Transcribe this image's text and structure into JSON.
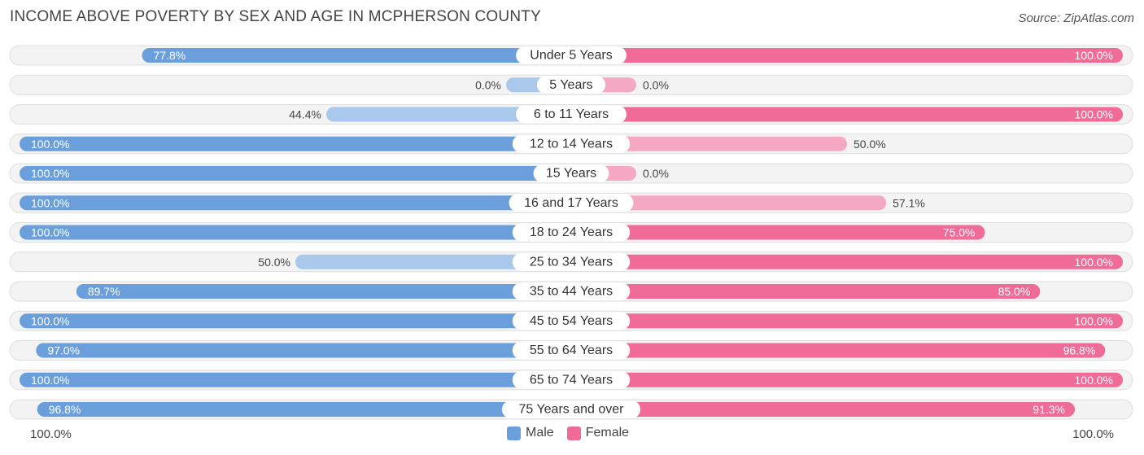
{
  "title": "INCOME ABOVE POVERTY BY SEX AND AGE IN MCPHERSON COUNTY",
  "source": "Source: ZipAtlas.com",
  "axis": {
    "left_label": "100.0%",
    "right_label": "100.0%"
  },
  "legend": {
    "male_label": "Male",
    "female_label": "Female"
  },
  "colors": {
    "male_strong": "#6a9fdc",
    "male_light": "#a9c8ec",
    "female_strong": "#f06b97",
    "female_light": "#f5a8c3",
    "track": "#efefef"
  },
  "chart_data": {
    "type": "bar",
    "orientation": "diverging-horizontal",
    "xlim": [
      -100,
      100
    ],
    "categories": [
      "Under 5 Years",
      "5 Years",
      "6 to 11 Years",
      "12 to 14 Years",
      "15 Years",
      "16 and 17 Years",
      "18 to 24 Years",
      "25 to 34 Years",
      "35 to 44 Years",
      "45 to 54 Years",
      "55 to 64 Years",
      "65 to 74 Years",
      "75 Years and over"
    ],
    "series": [
      {
        "name": "Male",
        "values": [
          77.8,
          0.0,
          44.4,
          100.0,
          100.0,
          100.0,
          100.0,
          50.0,
          89.7,
          100.0,
          97.0,
          100.0,
          96.8
        ],
        "labels": [
          "77.8%",
          "0.0%",
          "44.4%",
          "100.0%",
          "100.0%",
          "100.0%",
          "100.0%",
          "50.0%",
          "89.7%",
          "100.0%",
          "97.0%",
          "100.0%",
          "96.8%"
        ]
      },
      {
        "name": "Female",
        "values": [
          100.0,
          0.0,
          100.0,
          50.0,
          0.0,
          57.1,
          75.0,
          100.0,
          85.0,
          100.0,
          96.8,
          100.0,
          91.3
        ],
        "labels": [
          "100.0%",
          "0.0%",
          "100.0%",
          "50.0%",
          "0.0%",
          "57.1%",
          "75.0%",
          "100.0%",
          "85.0%",
          "100.0%",
          "96.8%",
          "100.0%",
          "91.3%"
        ]
      }
    ]
  }
}
